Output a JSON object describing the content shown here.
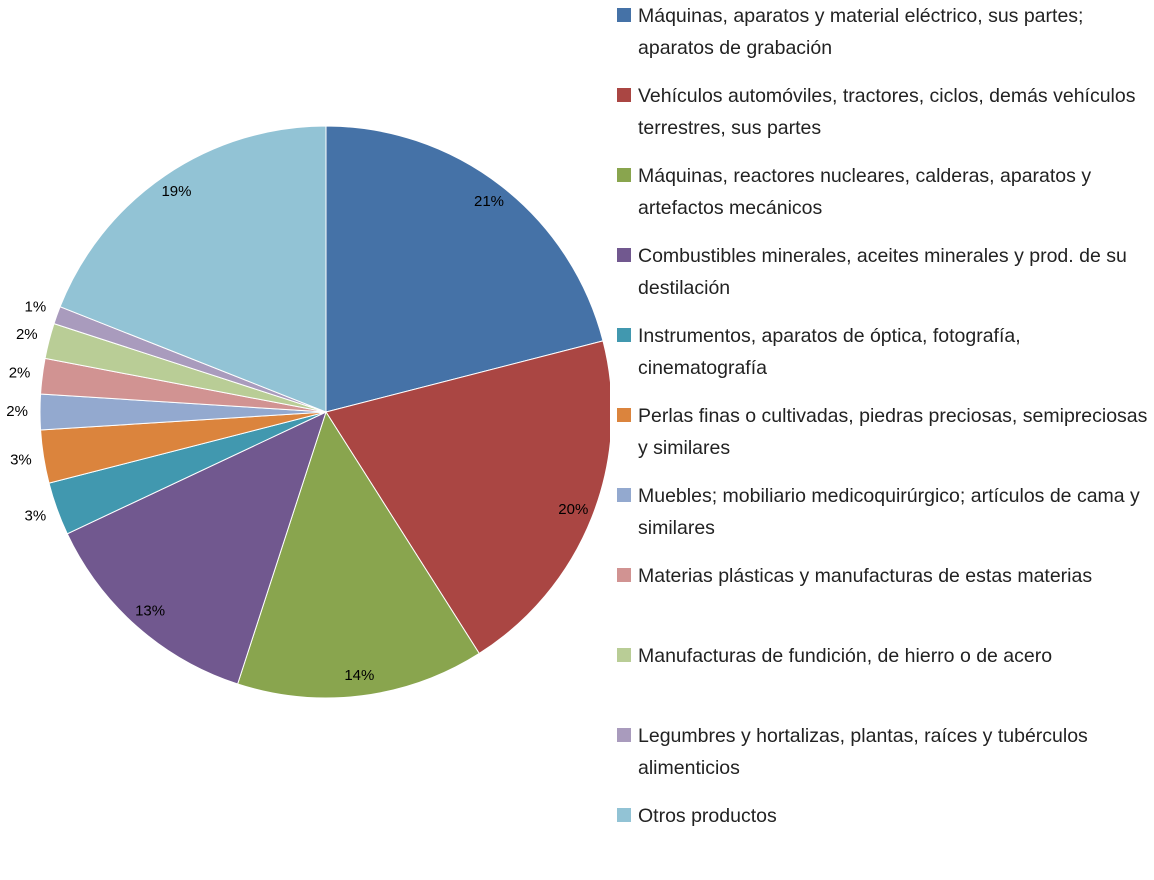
{
  "chart_data": {
    "type": "pie",
    "categories": [
      "Máquinas, aparatos y material eléctrico, sus partes; aparatos de grabación",
      "Vehículos automóviles, tractores, ciclos, demás vehículos terrestres, sus partes",
      "Máquinas, reactores nucleares, calderas, aparatos y artefactos mecánicos",
      "Combustibles minerales, aceites minerales y prod. de su destilación",
      "Instrumentos, aparatos de óptica, fotografía, cinematografía",
      "Perlas finas o cultivadas, piedras preciosas, semipreciosas y similares",
      "Muebles; mobiliario medicoquirúrgico; artículos de cama y similares",
      "Materias plásticas y manufacturas de estas materias",
      "Manufacturas de fundición, de hierro o de acero",
      "Legumbres y hortalizas, plantas, raíces y tubérculos alimenticios",
      "Otros productos"
    ],
    "values": [
      21,
      20,
      14,
      13,
      3,
      3,
      2,
      2,
      2,
      1,
      19
    ],
    "value_labels": [
      "21%",
      "20%",
      "14%",
      "13%",
      "3%",
      "3%",
      "2%",
      "2%",
      "2%",
      "1%",
      "19%"
    ],
    "colors": [
      "#4572a7",
      "#aa4643",
      "#89a54e",
      "#71588f",
      "#4198af",
      "#db843d",
      "#93a9cf",
      "#d19392",
      "#b9cd96",
      "#a99bbd",
      "#92c3d5"
    ],
    "legend": "right"
  }
}
